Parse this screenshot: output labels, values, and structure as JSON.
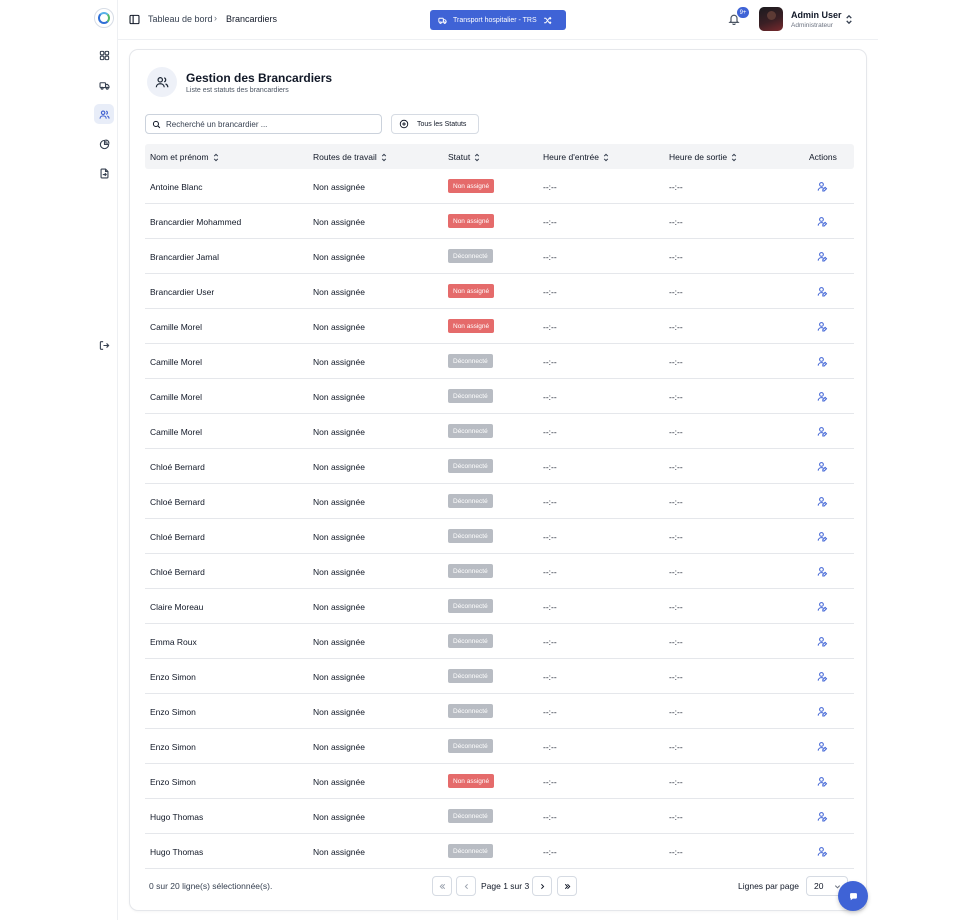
{
  "breadcrumb": {
    "home": "Tableau de bord",
    "separator": "›",
    "current": "Brancardiers"
  },
  "transport_button": {
    "label": "Transport hospitalier - TRS",
    "icon": "truck-icon",
    "swap_icon": "shuffle-icon"
  },
  "notifications": {
    "badge": "9+",
    "icon": "bell-icon"
  },
  "user": {
    "name": "Admin User",
    "role": "Administrateur"
  },
  "sidebar": {
    "items": [
      {
        "name": "dashboard",
        "icon": "grid-icon",
        "active": false
      },
      {
        "name": "transports",
        "icon": "truck-icon",
        "active": false
      },
      {
        "name": "brancardiers",
        "icon": "users-icon",
        "active": true
      },
      {
        "name": "statistics",
        "icon": "pie-chart-icon",
        "active": false
      },
      {
        "name": "documents",
        "icon": "file-export-icon",
        "active": false
      }
    ],
    "logout_icon": "logout-icon"
  },
  "page": {
    "title": "Gestion des Brancardiers",
    "subtitle": "Liste est statuts des brancardiers"
  },
  "search": {
    "placeholder": "Recherché un brancardier ..."
  },
  "status_filter": {
    "label": "Tous les Statuts"
  },
  "table": {
    "columns": [
      "Nom et prénom",
      "Routes de travail",
      "Statut",
      "Heure d'entrée",
      "Heure de sortie",
      "Actions"
    ],
    "rows": [
      {
        "name": "Antoine Blanc",
        "route": "Non assignée",
        "status": "Non assigné",
        "status_color": "#e56b6b",
        "time_in": "--:--",
        "time_out": "--:--"
      },
      {
        "name": "Brancardier Mohammed",
        "route": "Non assignée",
        "status": "Non assigné",
        "status_color": "#e56b6b",
        "time_in": "--:--",
        "time_out": "--:--"
      },
      {
        "name": "Brancardier Jamal",
        "route": "Non assignée",
        "status": "Déconnecté",
        "status_color": "#b8bcc3",
        "time_in": "--:--",
        "time_out": "--:--"
      },
      {
        "name": "Brancardier User",
        "route": "Non assignée",
        "status": "Non assigné",
        "status_color": "#e56b6b",
        "time_in": "--:--",
        "time_out": "--:--"
      },
      {
        "name": "Camille Morel",
        "route": "Non assignée",
        "status": "Non assigné",
        "status_color": "#e56b6b",
        "time_in": "--:--",
        "time_out": "--:--"
      },
      {
        "name": "Camille Morel",
        "route": "Non assignée",
        "status": "Déconnecté",
        "status_color": "#b8bcc3",
        "time_in": "--:--",
        "time_out": "--:--"
      },
      {
        "name": "Camille Morel",
        "route": "Non assignée",
        "status": "Déconnecté",
        "status_color": "#b8bcc3",
        "time_in": "--:--",
        "time_out": "--:--"
      },
      {
        "name": "Camille Morel",
        "route": "Non assignée",
        "status": "Déconnecté",
        "status_color": "#b8bcc3",
        "time_in": "--:--",
        "time_out": "--:--"
      },
      {
        "name": "Chloé Bernard",
        "route": "Non assignée",
        "status": "Déconnecté",
        "status_color": "#b8bcc3",
        "time_in": "--:--",
        "time_out": "--:--"
      },
      {
        "name": "Chloé Bernard",
        "route": "Non assignée",
        "status": "Déconnecté",
        "status_color": "#b8bcc3",
        "time_in": "--:--",
        "time_out": "--:--"
      },
      {
        "name": "Chloé Bernard",
        "route": "Non assignée",
        "status": "Déconnecté",
        "status_color": "#b8bcc3",
        "time_in": "--:--",
        "time_out": "--:--"
      },
      {
        "name": "Chloé Bernard",
        "route": "Non assignée",
        "status": "Déconnecté",
        "status_color": "#b8bcc3",
        "time_in": "--:--",
        "time_out": "--:--"
      },
      {
        "name": "Claire Moreau",
        "route": "Non assignée",
        "status": "Déconnecté",
        "status_color": "#b8bcc3",
        "time_in": "--:--",
        "time_out": "--:--"
      },
      {
        "name": "Emma Roux",
        "route": "Non assignée",
        "status": "Déconnecté",
        "status_color": "#b8bcc3",
        "time_in": "--:--",
        "time_out": "--:--"
      },
      {
        "name": "Enzo Simon",
        "route": "Non assignée",
        "status": "Déconnecté",
        "status_color": "#b8bcc3",
        "time_in": "--:--",
        "time_out": "--:--"
      },
      {
        "name": "Enzo Simon",
        "route": "Non assignée",
        "status": "Déconnecté",
        "status_color": "#b8bcc3",
        "time_in": "--:--",
        "time_out": "--:--"
      },
      {
        "name": "Enzo Simon",
        "route": "Non assignée",
        "status": "Déconnecté",
        "status_color": "#b8bcc3",
        "time_in": "--:--",
        "time_out": "--:--"
      },
      {
        "name": "Enzo Simon",
        "route": "Non assignée",
        "status": "Non assigné",
        "status_color": "#e56b6b",
        "time_in": "--:--",
        "time_out": "--:--"
      },
      {
        "name": "Hugo Thomas",
        "route": "Non assignée",
        "status": "Déconnecté",
        "status_color": "#b8bcc3",
        "time_in": "--:--",
        "time_out": "--:--"
      },
      {
        "name": "Hugo Thomas",
        "route": "Non assignée",
        "status": "Déconnecté",
        "status_color": "#b8bcc3",
        "time_in": "--:--",
        "time_out": "--:--"
      }
    ],
    "action_icon": "user-edit-icon"
  },
  "footer": {
    "selection": "0 sur 20 ligne(s) sélectionnée(s).",
    "page_info": "Page 1 sur 3",
    "rows_per_page_label": "Lignes par page",
    "rows_per_page_value": "20"
  },
  "colors": {
    "accent": "#3f63d6",
    "danger": "#e56b6b",
    "muted": "#b8bcc3"
  }
}
